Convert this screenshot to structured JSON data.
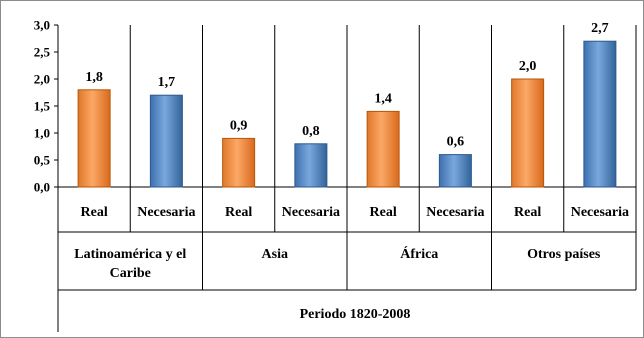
{
  "chart_data": {
    "type": "bar",
    "title": "",
    "ylabel": "",
    "ylim": [
      0,
      3.0
    ],
    "yticks": [
      "0,0",
      "0,5",
      "1,0",
      "1,5",
      "2,0",
      "2,5",
      "3,0"
    ],
    "grid": false,
    "categories": [
      "Real",
      "Necesaria",
      "Real",
      "Necesaria",
      "Real",
      "Necesaria",
      "Real",
      "Necesaria"
    ],
    "values": [
      1.8,
      1.7,
      0.9,
      0.8,
      1.4,
      0.6,
      2.0,
      2.7
    ],
    "value_labels": [
      "1,8",
      "1,7",
      "0,9",
      "0,8",
      "1,4",
      "0,6",
      "2,0",
      "2,7"
    ],
    "groups": [
      {
        "label": "Latinoamérica y el Caribe",
        "lines": [
          "Latinoamérica y el",
          "Caribe"
        ]
      },
      {
        "label": "Asia",
        "lines": [
          "Asia"
        ]
      },
      {
        "label": "África",
        "lines": [
          "África"
        ]
      },
      {
        "label": "Otros países",
        "lines": [
          "Otros países"
        ]
      }
    ],
    "period_label": "Periodo 1820-2008",
    "colors": {
      "Real": "#F79646",
      "Necesaria": "#4F81BD",
      "Real_stroke": "#B65708",
      "Necesaria_stroke": "#2C5A8F"
    }
  }
}
